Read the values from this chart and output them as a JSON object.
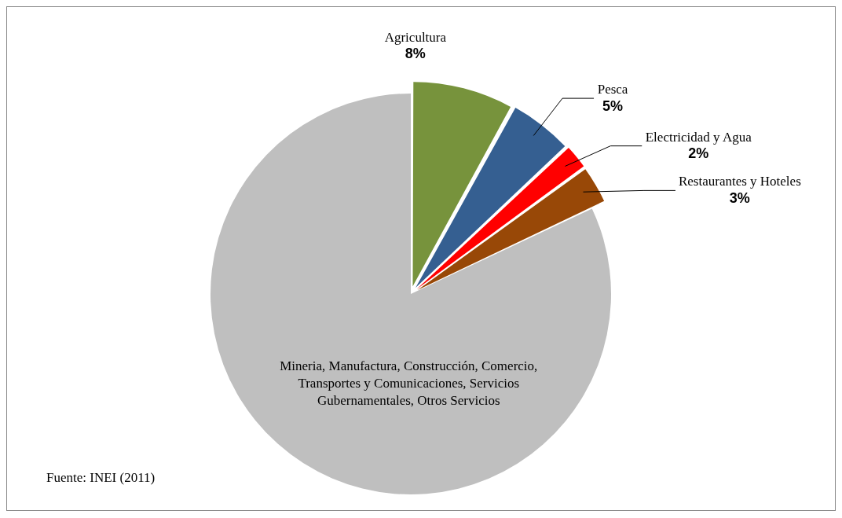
{
  "chart_data": {
    "type": "pie",
    "categories": [
      "Agricultura",
      "Pesca",
      "Electricidad y Agua",
      "Restaurantes y Hoteles",
      "Mineria, Manufactura, Construcción, Comercio, Transportes y Comunicaciones, Servicios Gubernamentales, Otros Servicios"
    ],
    "values": [
      8,
      5,
      2,
      3,
      82
    ],
    "colors": [
      "#77933c",
      "#355f91",
      "#ff0000",
      "#984807",
      "#bfbfbf"
    ],
    "value_labels": [
      "8%",
      "5%",
      "2%",
      "3%",
      null
    ],
    "legend": false,
    "annotations": [
      "Fuente: INEI (2011)"
    ]
  }
}
